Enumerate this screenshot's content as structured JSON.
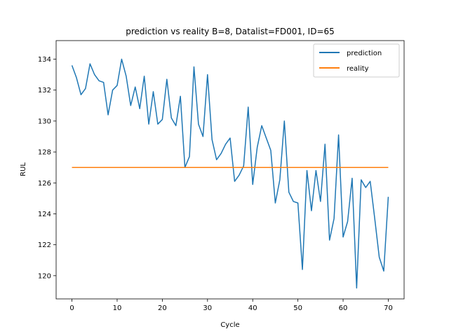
{
  "chart_data": {
    "type": "line",
    "title": "prediction vs reality B=8, Datalist=FD001, ID=65",
    "xlabel": "Cycle",
    "ylabel": "RUL",
    "xlim": [
      -3.5,
      73.5
    ],
    "ylim": [
      118.5,
      135.2
    ],
    "x_ticks": [
      0,
      10,
      20,
      30,
      40,
      50,
      60,
      70
    ],
    "y_ticks": [
      120,
      122,
      124,
      126,
      128,
      130,
      132,
      134
    ],
    "grid": false,
    "legend": "upper right",
    "x": [
      0,
      1,
      2,
      3,
      4,
      5,
      6,
      7,
      8,
      9,
      10,
      11,
      12,
      13,
      14,
      15,
      16,
      17,
      18,
      19,
      20,
      21,
      22,
      23,
      24,
      25,
      26,
      27,
      28,
      29,
      30,
      31,
      32,
      33,
      34,
      35,
      36,
      37,
      38,
      39,
      40,
      41,
      42,
      43,
      44,
      45,
      46,
      47,
      48,
      49,
      50,
      51,
      52,
      53,
      54,
      55,
      56,
      57,
      58,
      59,
      60,
      61,
      62,
      63,
      64,
      65,
      66,
      67,
      68,
      69,
      70
    ],
    "series": [
      {
        "name": "prediction",
        "color": "#1f77b4",
        "values": [
          133.6,
          132.8,
          131.7,
          132.1,
          133.7,
          133.0,
          132.6,
          132.5,
          130.4,
          132.0,
          132.3,
          134.0,
          132.9,
          131.0,
          132.2,
          130.8,
          132.9,
          129.8,
          131.9,
          129.8,
          130.1,
          132.7,
          130.2,
          129.7,
          131.6,
          127.0,
          127.7,
          133.5,
          129.8,
          129.0,
          133.0,
          128.8,
          127.5,
          127.9,
          128.5,
          128.9,
          126.1,
          126.5,
          127.1,
          130.9,
          125.9,
          128.3,
          129.7,
          128.9,
          128.1,
          124.7,
          126.2,
          130.0,
          125.4,
          124.8,
          124.7,
          120.4,
          126.8,
          124.2,
          126.8,
          124.8,
          128.5,
          122.3,
          123.7,
          129.1,
          122.5,
          123.5,
          126.3,
          119.2,
          126.2,
          125.7,
          126.1,
          123.7,
          121.2,
          120.3,
          125.1
        ]
      },
      {
        "name": "reality",
        "color": "#ff7f0e",
        "values": [
          127,
          127,
          127,
          127,
          127,
          127,
          127,
          127,
          127,
          127,
          127,
          127,
          127,
          127,
          127,
          127,
          127,
          127,
          127,
          127,
          127,
          127,
          127,
          127,
          127,
          127,
          127,
          127,
          127,
          127,
          127,
          127,
          127,
          127,
          127,
          127,
          127,
          127,
          127,
          127,
          127,
          127,
          127,
          127,
          127,
          127,
          127,
          127,
          127,
          127,
          127,
          127,
          127,
          127,
          127,
          127,
          127,
          127,
          127,
          127,
          127,
          127,
          127,
          127,
          127,
          127,
          127,
          127,
          127,
          127,
          127
        ]
      }
    ]
  }
}
